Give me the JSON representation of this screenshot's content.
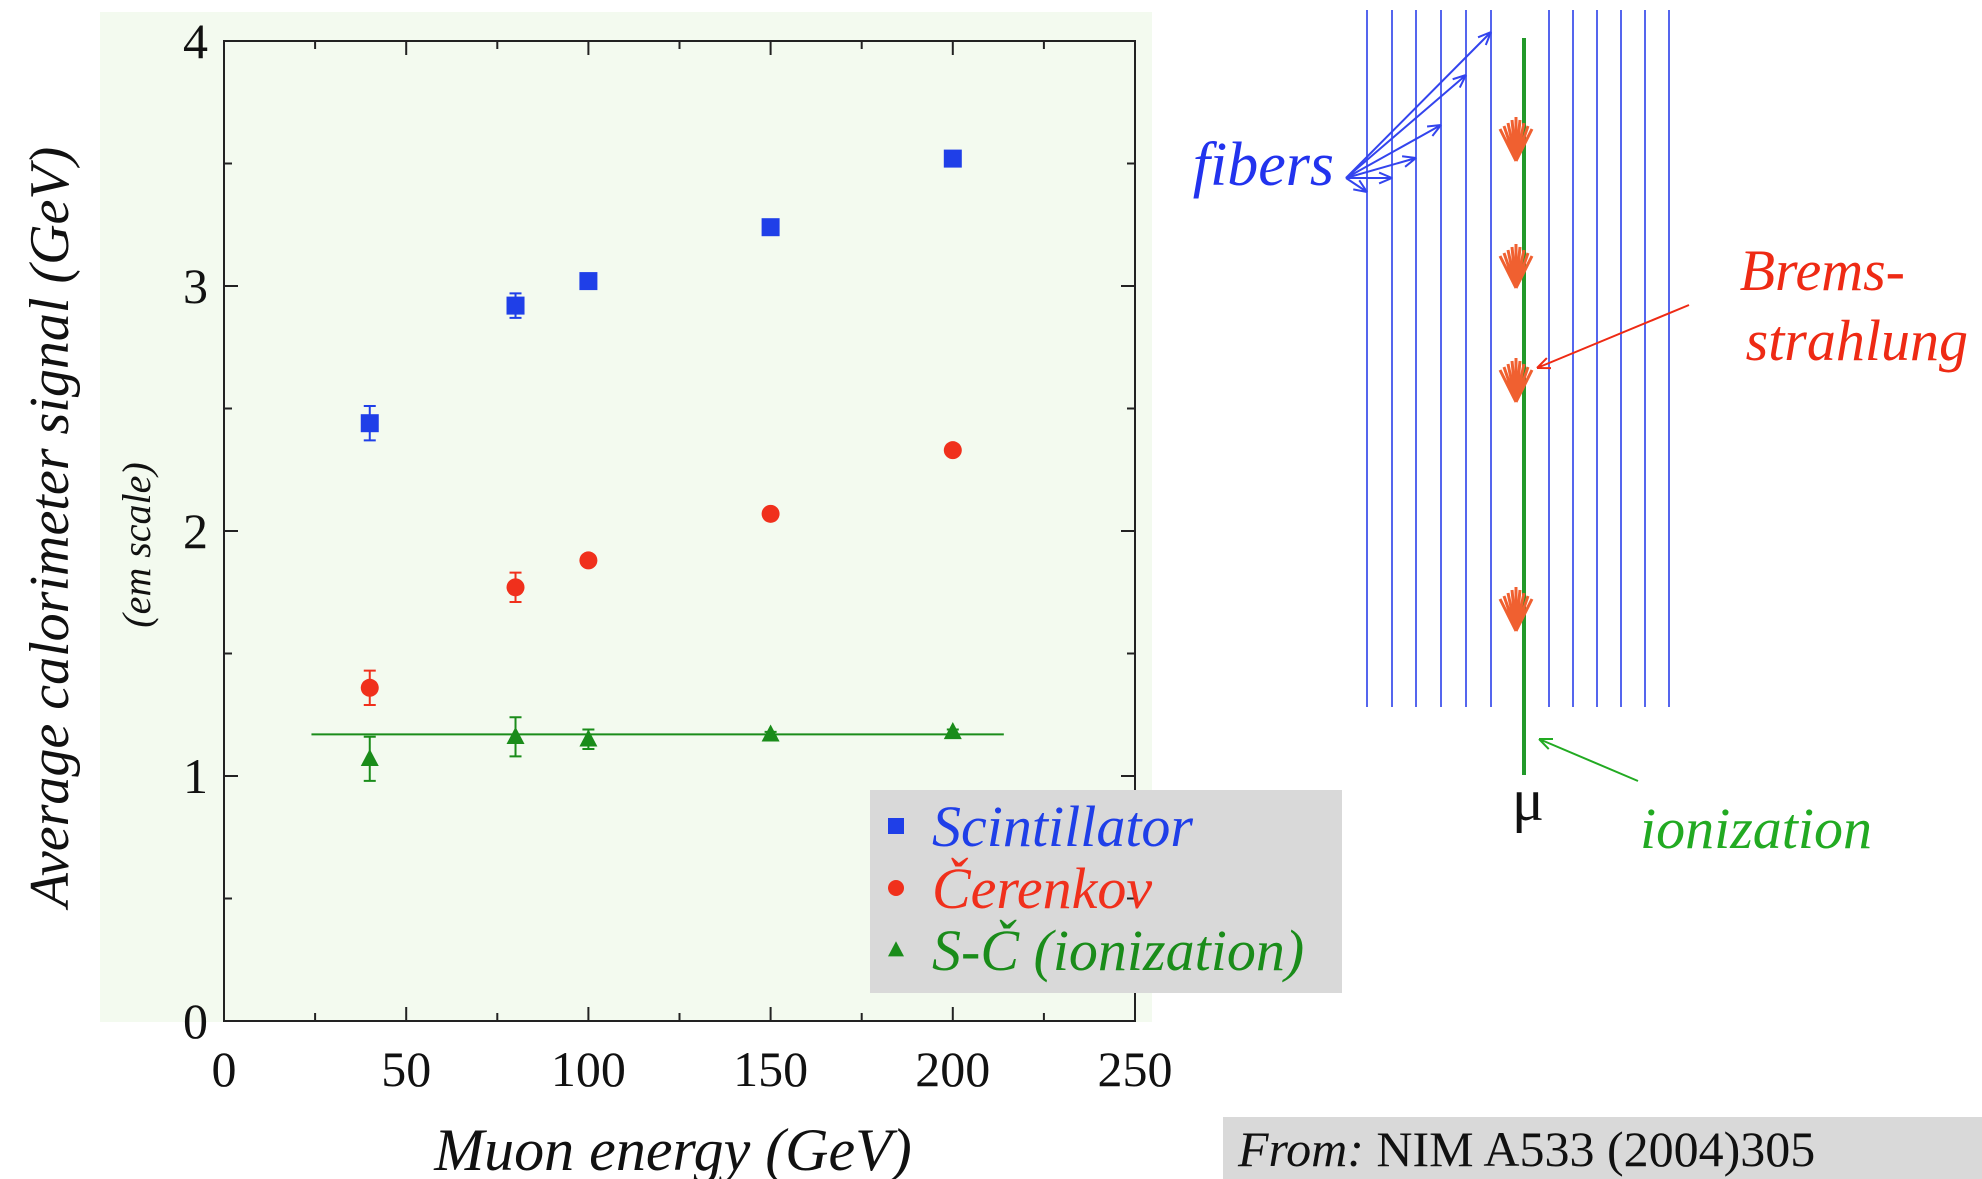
{
  "chart_data": {
    "type": "scatter",
    "x_label": "Muon energy (GeV)",
    "y_label": "Average calorimeter signal (GeV)",
    "y_sublabel": "(em scale)",
    "xlim": [
      0,
      250
    ],
    "ylim": [
      0,
      4
    ],
    "xticks": [
      0,
      50,
      100,
      150,
      200,
      250
    ],
    "yticks": [
      0,
      1,
      2,
      3,
      4
    ],
    "xminor": [
      25,
      75,
      125,
      175,
      225
    ],
    "yminor": [
      0.5,
      1.5,
      2.5,
      3.5
    ],
    "legend": "bottom-right",
    "series": [
      {
        "name": "Scintillator",
        "color": "#1f3fe8",
        "marker": "square",
        "x": [
          40,
          80,
          100,
          150,
          200
        ],
        "values": [
          2.44,
          2.92,
          3.02,
          3.24,
          3.52
        ],
        "errors": [
          0.07,
          0.05,
          0.02,
          0.02,
          0.02
        ]
      },
      {
        "name": "Čerenkov",
        "color": "#f0301c",
        "marker": "circle",
        "x": [
          40,
          80,
          100,
          150,
          200
        ],
        "values": [
          1.36,
          1.77,
          1.88,
          2.07,
          2.33
        ],
        "errors": [
          0.07,
          0.06,
          0.02,
          0.02,
          0.02
        ]
      },
      {
        "name": "S-Č (ionization)",
        "color": "#1a8c1a",
        "marker": "triangle",
        "x": [
          40,
          80,
          100,
          150,
          200
        ],
        "values": [
          1.07,
          1.16,
          1.15,
          1.17,
          1.18
        ],
        "errors": [
          0.09,
          0.08,
          0.04,
          0.01,
          0.01
        ]
      }
    ],
    "fit_line": {
      "color": "#1a8c1a",
      "x": [
        24,
        214
      ],
      "values": [
        1.17,
        1.17
      ]
    }
  },
  "diagram": {
    "fibers_label": "fibers",
    "brems_label": [
      "Brems-",
      "strahlung"
    ],
    "muon_label": "μ",
    "ionization_label": "ionization"
  },
  "source": {
    "prefix": "From:",
    "text": "NIM A533 (2004)305"
  }
}
